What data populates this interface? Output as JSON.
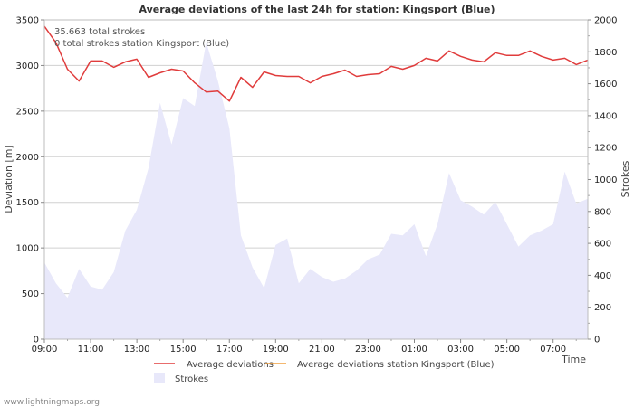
{
  "chart_data": {
    "type": "line",
    "title": "Average deviations of the last 24h for station: Kingsport (Blue)",
    "ylabel": "Deviation  [m]",
    "y2label": "Strokes",
    "xlabel": "Time",
    "ylim": [
      0,
      3500
    ],
    "y2lim": [
      0,
      2000
    ],
    "yticks": [
      "0",
      "500",
      "1000",
      "1500",
      "2000",
      "2500",
      "3000",
      "3500"
    ],
    "y2ticks": [
      "0",
      "200",
      "400",
      "600",
      "800",
      "1000",
      "1200",
      "1400",
      "1600",
      "1800",
      "2000"
    ],
    "xticks": [
      "09:00",
      "11:00",
      "13:00",
      "15:00",
      "17:00",
      "19:00",
      "21:00",
      "23:00",
      "01:00",
      "03:00",
      "05:00",
      "07:00"
    ],
    "x_range_hours": [
      0,
      23.5
    ],
    "annotations": [
      "35.663 total strokes",
      "0 total strokes station Kingsport (Blue)"
    ],
    "legend": [
      {
        "label": "Average deviations",
        "color": "#e03c3c",
        "kind": "line"
      },
      {
        "label": "Average deviations station Kingsport (Blue)",
        "color": "#f0a040",
        "kind": "line"
      },
      {
        "label": "Strokes",
        "color": "#e8e8fa",
        "kind": "area"
      }
    ],
    "series": [
      {
        "name": "Average deviations",
        "axis": "left",
        "color": "#e03c3c",
        "x": [
          0,
          0.5,
          1,
          1.5,
          2,
          2.5,
          3,
          3.5,
          4,
          4.5,
          5,
          5.5,
          6,
          6.5,
          7,
          7.5,
          8,
          8.5,
          9,
          9.5,
          10,
          10.5,
          11,
          11.5,
          12,
          12.5,
          13,
          13.5,
          14,
          14.5,
          15,
          15.5,
          16,
          16.5,
          17,
          17.5,
          18,
          18.5,
          19,
          19.5,
          20,
          20.5,
          21,
          21.5,
          22,
          22.5,
          23,
          23.5
        ],
        "values": [
          3430,
          3250,
          2960,
          2830,
          3050,
          3050,
          2980,
          3040,
          3070,
          2870,
          2920,
          2960,
          2940,
          2810,
          2710,
          2720,
          2610,
          2870,
          2760,
          2930,
          2890,
          2880,
          2880,
          2810,
          2880,
          2910,
          2950,
          2880,
          2900,
          2910,
          2990,
          2960,
          3000,
          3080,
          3050,
          3160,
          3100,
          3060,
          3040,
          3140,
          3110,
          3110,
          3160,
          3100,
          3060,
          3080,
          3010,
          3060
        ]
      },
      {
        "name": "Strokes",
        "axis": "right",
        "color": "#e8e8fa",
        "x": [
          0,
          0.5,
          1,
          1.5,
          2,
          2.5,
          3,
          3.5,
          4,
          4.5,
          5,
          5.5,
          6,
          6.5,
          7,
          7.5,
          8,
          8.5,
          9,
          9.5,
          10,
          10.5,
          11,
          11.5,
          12,
          12.5,
          13,
          13.5,
          14,
          14.5,
          15,
          15.5,
          16,
          16.5,
          17,
          17.5,
          18,
          18.5,
          19,
          19.5,
          20,
          20.5,
          21,
          21.5,
          22,
          22.5,
          23,
          23.5
        ],
        "values": [
          480,
          350,
          260,
          440,
          330,
          310,
          420,
          680,
          810,
          1070,
          1480,
          1220,
          1510,
          1460,
          1860,
          1620,
          1320,
          650,
          450,
          320,
          590,
          630,
          350,
          440,
          390,
          360,
          380,
          430,
          500,
          530,
          660,
          650,
          720,
          520,
          720,
          1040,
          870,
          830,
          780,
          860,
          720,
          580,
          650,
          680,
          720,
          1050,
          850,
          880
        ]
      }
    ]
  },
  "footer": "www.lightningmaps.org"
}
